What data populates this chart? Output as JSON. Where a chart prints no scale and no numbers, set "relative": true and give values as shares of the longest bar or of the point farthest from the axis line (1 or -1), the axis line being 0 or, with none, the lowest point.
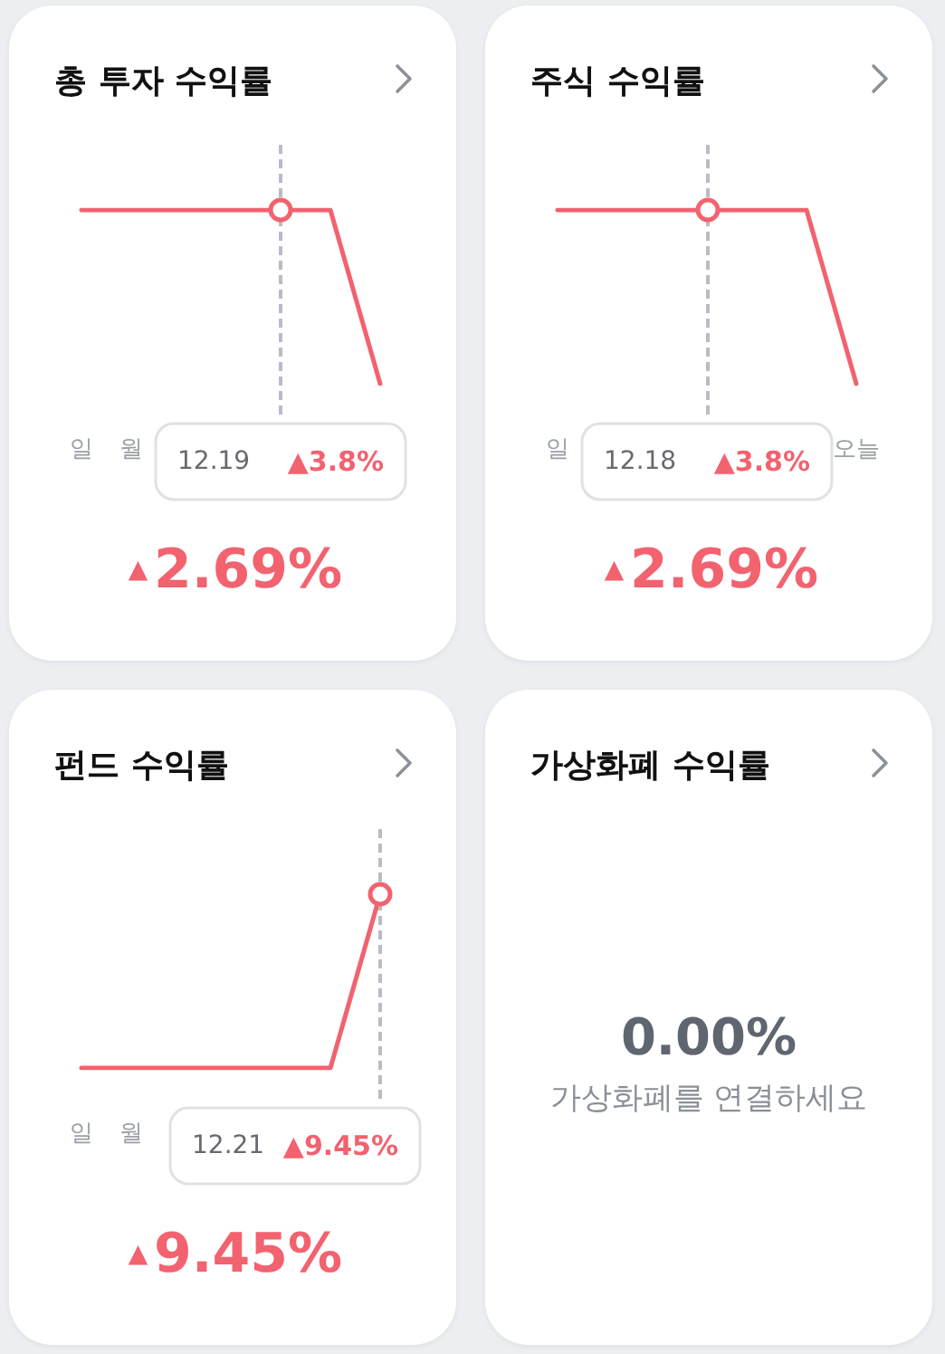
{
  "chart_data": [
    {
      "type": "line",
      "title": "총 투자 수익률",
      "categories": [
        "일",
        "월",
        null,
        null,
        null,
        null,
        null
      ],
      "values": [
        1,
        1,
        1,
        1,
        1,
        1,
        0
      ],
      "relative": true,
      "color": "#f2626f",
      "marker": "none",
      "tick_labels": "x",
      "annotations": [
        "12.19 ▲3.8%",
        "▲2.69%"
      ]
    },
    {
      "type": "line",
      "title": "주식 수익률",
      "categories": [
        "일",
        null,
        null,
        null,
        null,
        null,
        "오늘"
      ],
      "values": [
        1,
        1,
        1,
        1,
        1,
        1,
        0
      ],
      "relative": true,
      "color": "#f2626f",
      "marker": "none",
      "tick_labels": "x",
      "annotations": [
        "12.18 ▲3.8%",
        "▲2.69%"
      ]
    },
    {
      "type": "line",
      "title": "펀드 수익률",
      "categories": [
        "일",
        "월",
        null,
        null,
        null,
        null,
        null
      ],
      "values": [
        0,
        0,
        0,
        0,
        0,
        0,
        1
      ],
      "relative": true,
      "color": "#f2626f",
      "marker": "none",
      "tick_labels": "x",
      "annotations": [
        "12.21 ▲9.45%",
        "▲9.45%"
      ]
    },
    {
      "type": "other",
      "title": "가상화폐 수익률",
      "annotations": [
        "0.00%",
        "가상화폐를 연결하세요"
      ]
    }
  ]
}
